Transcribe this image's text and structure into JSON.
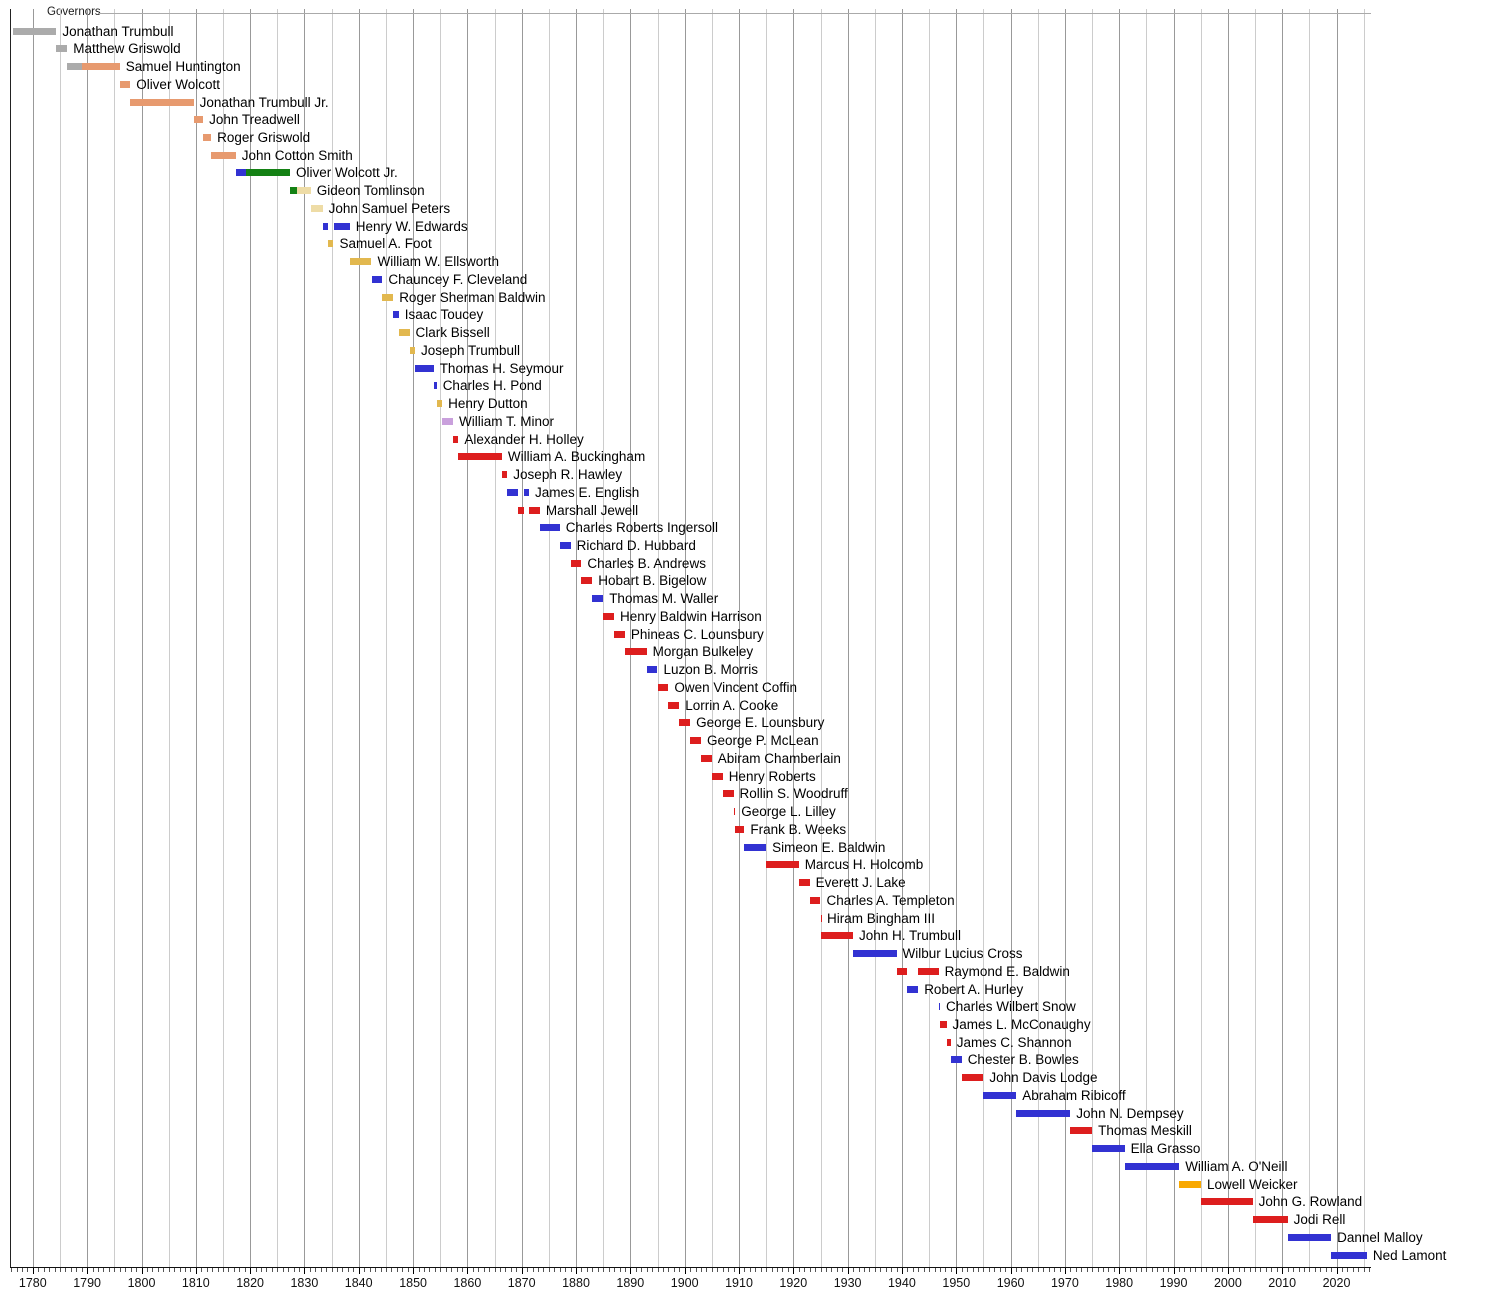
{
  "chart_data": {
    "type": "timeline",
    "title": "Governors",
    "x_axis": {
      "min_year": 1775.8,
      "max_year": 2026.3,
      "gridline_step_years": 5,
      "label_step_years": 10,
      "tick_labels": [
        "1780",
        "1790",
        "1800",
        "1810",
        "1820",
        "1830",
        "1840",
        "1850",
        "1860",
        "1870",
        "1880",
        "1890",
        "1900",
        "1910",
        "1920",
        "1930",
        "1940",
        "1950",
        "1960",
        "1970",
        "1980",
        "1990",
        "2000",
        "2010",
        "2020"
      ]
    },
    "colors": {
      "gray": "#ABABAB",
      "salmon": "#E79A6F",
      "blue": "#3232D2",
      "green": "#148114",
      "buff": "#EEDCA6",
      "gold": "#E2B84F",
      "purple": "#C9A0DC",
      "red": "#DD1E1E",
      "orange": "#F9A800"
    },
    "governors": [
      {
        "name": "Jonathan Trumbull",
        "segments": [
          {
            "from": 1776.4,
            "till": 1784.35,
            "color": "gray"
          }
        ]
      },
      {
        "name": "Matthew Griswold",
        "segments": [
          {
            "from": 1784.35,
            "till": 1786.35,
            "color": "gray"
          }
        ]
      },
      {
        "name": "Samuel Huntington",
        "segments": [
          {
            "from": 1786.35,
            "till": 1789.0,
            "color": "gray"
          },
          {
            "from": 1789.0,
            "till": 1796.02,
            "color": "salmon"
          }
        ]
      },
      {
        "name": "Oliver Wolcott",
        "segments": [
          {
            "from": 1796.02,
            "till": 1797.92,
            "color": "salmon"
          }
        ]
      },
      {
        "name": "Jonathan Trumbull Jr.",
        "segments": [
          {
            "from": 1797.92,
            "till": 1809.6,
            "color": "salmon"
          }
        ]
      },
      {
        "name": "John Treadwell",
        "segments": [
          {
            "from": 1809.6,
            "till": 1811.35,
            "color": "salmon"
          }
        ]
      },
      {
        "name": "Roger Griswold",
        "segments": [
          {
            "from": 1811.35,
            "till": 1812.82,
            "color": "salmon"
          }
        ]
      },
      {
        "name": "John Cotton Smith",
        "segments": [
          {
            "from": 1812.82,
            "till": 1817.35,
            "color": "salmon"
          }
        ]
      },
      {
        "name": "Oliver Wolcott Jr.",
        "segments": [
          {
            "from": 1817.35,
            "till": 1819.2,
            "color": "blue"
          },
          {
            "from": 1819.2,
            "till": 1827.35,
            "color": "green"
          }
        ]
      },
      {
        "name": "Gideon Tomlinson",
        "segments": [
          {
            "from": 1827.35,
            "till": 1828.6,
            "color": "green"
          },
          {
            "from": 1828.6,
            "till": 1831.17,
            "color": "buff"
          }
        ]
      },
      {
        "name": "John Samuel Peters",
        "segments": [
          {
            "from": 1831.17,
            "till": 1833.35,
            "color": "buff"
          }
        ]
      },
      {
        "name": "Henry W. Edwards",
        "segments": [
          {
            "from": 1833.35,
            "till": 1834.35,
            "color": "blue"
          },
          {
            "from": 1835.35,
            "till": 1838.35,
            "color": "blue"
          }
        ]
      },
      {
        "name": "Samuel A. Foot",
        "segments": [
          {
            "from": 1834.35,
            "till": 1835.35,
            "color": "gold"
          }
        ]
      },
      {
        "name": "William W. Ellsworth",
        "segments": [
          {
            "from": 1838.35,
            "till": 1842.35,
            "color": "gold"
          }
        ]
      },
      {
        "name": "Chauncey F. Cleveland",
        "segments": [
          {
            "from": 1842.35,
            "till": 1844.35,
            "color": "blue"
          }
        ]
      },
      {
        "name": "Roger Sherman Baldwin",
        "segments": [
          {
            "from": 1844.35,
            "till": 1846.35,
            "color": "gold"
          }
        ]
      },
      {
        "name": "Isaac Toucey",
        "segments": [
          {
            "from": 1846.35,
            "till": 1847.35,
            "color": "blue"
          }
        ]
      },
      {
        "name": "Clark Bissell",
        "segments": [
          {
            "from": 1847.35,
            "till": 1849.35,
            "color": "gold"
          }
        ]
      },
      {
        "name": "Joseph Trumbull",
        "segments": [
          {
            "from": 1849.35,
            "till": 1850.35,
            "color": "gold"
          }
        ]
      },
      {
        "name": "Thomas H. Seymour",
        "segments": [
          {
            "from": 1850.35,
            "till": 1853.8,
            "color": "blue"
          }
        ]
      },
      {
        "name": "Charles H. Pond",
        "segments": [
          {
            "from": 1853.8,
            "till": 1854.35,
            "color": "blue"
          }
        ]
      },
      {
        "name": "Henry Dutton",
        "segments": [
          {
            "from": 1854.35,
            "till": 1855.35,
            "color": "gold"
          }
        ]
      },
      {
        "name": "William T. Minor",
        "segments": [
          {
            "from": 1855.35,
            "till": 1857.35,
            "color": "purple"
          }
        ]
      },
      {
        "name": "Alexander H. Holley",
        "segments": [
          {
            "from": 1857.35,
            "till": 1858.35,
            "color": "red"
          }
        ]
      },
      {
        "name": "William A. Buckingham",
        "segments": [
          {
            "from": 1858.35,
            "till": 1866.35,
            "color": "red"
          }
        ]
      },
      {
        "name": "Joseph R. Hawley",
        "segments": [
          {
            "from": 1866.35,
            "till": 1867.35,
            "color": "red"
          }
        ]
      },
      {
        "name": "James E. English",
        "segments": [
          {
            "from": 1867.35,
            "till": 1869.35,
            "color": "blue"
          },
          {
            "from": 1870.35,
            "till": 1871.35,
            "color": "blue"
          }
        ]
      },
      {
        "name": "Marshall Jewell",
        "segments": [
          {
            "from": 1869.35,
            "till": 1870.35,
            "color": "red"
          },
          {
            "from": 1871.35,
            "till": 1873.35,
            "color": "red"
          }
        ]
      },
      {
        "name": "Charles Roberts Ingersoll",
        "segments": [
          {
            "from": 1873.35,
            "till": 1877.0,
            "color": "blue"
          }
        ]
      },
      {
        "name": "Richard D. Hubbard",
        "segments": [
          {
            "from": 1877.0,
            "till": 1879.0,
            "color": "blue"
          }
        ]
      },
      {
        "name": "Charles B. Andrews",
        "segments": [
          {
            "from": 1879.0,
            "till": 1881.0,
            "color": "red"
          }
        ]
      },
      {
        "name": "Hobart B. Bigelow",
        "segments": [
          {
            "from": 1881.0,
            "till": 1883.0,
            "color": "red"
          }
        ]
      },
      {
        "name": "Thomas M. Waller",
        "segments": [
          {
            "from": 1883.0,
            "till": 1885.0,
            "color": "blue"
          }
        ]
      },
      {
        "name": "Henry Baldwin Harrison",
        "segments": [
          {
            "from": 1885.0,
            "till": 1887.0,
            "color": "red"
          }
        ]
      },
      {
        "name": "Phineas C. Lounsbury",
        "segments": [
          {
            "from": 1887.0,
            "till": 1889.0,
            "color": "red"
          }
        ]
      },
      {
        "name": "Morgan Bulkeley",
        "segments": [
          {
            "from": 1889.0,
            "till": 1893.0,
            "color": "red"
          }
        ]
      },
      {
        "name": "Luzon B. Morris",
        "segments": [
          {
            "from": 1893.0,
            "till": 1895.0,
            "color": "blue"
          }
        ]
      },
      {
        "name": "Owen Vincent Coffin",
        "segments": [
          {
            "from": 1895.0,
            "till": 1897.0,
            "color": "red"
          }
        ]
      },
      {
        "name": "Lorrin A. Cooke",
        "segments": [
          {
            "from": 1897.0,
            "till": 1899.0,
            "color": "red"
          }
        ]
      },
      {
        "name": "George E. Lounsbury",
        "segments": [
          {
            "from": 1899.0,
            "till": 1901.0,
            "color": "red"
          }
        ]
      },
      {
        "name": "George P. McLean",
        "segments": [
          {
            "from": 1901.0,
            "till": 1903.0,
            "color": "red"
          }
        ]
      },
      {
        "name": "Abiram Chamberlain",
        "segments": [
          {
            "from": 1903.0,
            "till": 1905.0,
            "color": "red"
          }
        ]
      },
      {
        "name": "Henry Roberts",
        "segments": [
          {
            "from": 1905.0,
            "till": 1907.0,
            "color": "red"
          }
        ]
      },
      {
        "name": "Rollin S. Woodruff",
        "segments": [
          {
            "from": 1907.0,
            "till": 1909.0,
            "color": "red"
          }
        ]
      },
      {
        "name": "George L. Lilley",
        "segments": [
          {
            "from": 1909.0,
            "till": 1909.3,
            "color": "red"
          }
        ]
      },
      {
        "name": "Frank B. Weeks",
        "segments": [
          {
            "from": 1909.3,
            "till": 1911.0,
            "color": "red"
          }
        ]
      },
      {
        "name": "Simeon E. Baldwin",
        "segments": [
          {
            "from": 1911.0,
            "till": 1915.0,
            "color": "blue"
          }
        ]
      },
      {
        "name": "Marcus H. Holcomb",
        "segments": [
          {
            "from": 1915.0,
            "till": 1921.0,
            "color": "red"
          }
        ]
      },
      {
        "name": "Everett J. Lake",
        "segments": [
          {
            "from": 1921.0,
            "till": 1923.0,
            "color": "red"
          }
        ]
      },
      {
        "name": "Charles A. Templeton",
        "segments": [
          {
            "from": 1923.0,
            "till": 1925.0,
            "color": "red"
          }
        ]
      },
      {
        "name": "Hiram Bingham III",
        "segments": [
          {
            "from": 1925.0,
            "till": 1925.1,
            "color": "red"
          }
        ]
      },
      {
        "name": "John H. Trumbull",
        "segments": [
          {
            "from": 1925.1,
            "till": 1931.0,
            "color": "red"
          }
        ]
      },
      {
        "name": "Wilbur Lucius Cross",
        "segments": [
          {
            "from": 1931.0,
            "till": 1939.0,
            "color": "blue"
          }
        ]
      },
      {
        "name": "Raymond E. Baldwin",
        "segments": [
          {
            "from": 1939.0,
            "till": 1941.0,
            "color": "red"
          },
          {
            "from": 1943.0,
            "till": 1946.75,
            "color": "red"
          }
        ]
      },
      {
        "name": "Robert A. Hurley",
        "segments": [
          {
            "from": 1941.0,
            "till": 1943.0,
            "color": "blue"
          }
        ]
      },
      {
        "name": "Charles Wilbert Snow",
        "segments": [
          {
            "from": 1946.75,
            "till": 1947.0,
            "color": "blue"
          }
        ]
      },
      {
        "name": "James L. McConaughy",
        "segments": [
          {
            "from": 1947.0,
            "till": 1948.2,
            "color": "red"
          }
        ]
      },
      {
        "name": "James C. Shannon",
        "segments": [
          {
            "from": 1948.2,
            "till": 1949.0,
            "color": "red"
          }
        ]
      },
      {
        "name": "Chester B. Bowles",
        "segments": [
          {
            "from": 1949.0,
            "till": 1951.0,
            "color": "blue"
          }
        ]
      },
      {
        "name": "John Davis Lodge",
        "segments": [
          {
            "from": 1951.0,
            "till": 1955.0,
            "color": "red"
          }
        ]
      },
      {
        "name": "Abraham Ribicoff",
        "segments": [
          {
            "from": 1955.0,
            "till": 1961.05,
            "color": "blue"
          }
        ]
      },
      {
        "name": "John N. Dempsey",
        "segments": [
          {
            "from": 1961.05,
            "till": 1971.0,
            "color": "blue"
          }
        ]
      },
      {
        "name": "Thomas Meskill",
        "segments": [
          {
            "from": 1971.0,
            "till": 1975.0,
            "color": "red"
          }
        ]
      },
      {
        "name": "Ella Grasso",
        "segments": [
          {
            "from": 1975.0,
            "till": 1981.0,
            "color": "blue"
          }
        ]
      },
      {
        "name": "William A. O'Neill",
        "segments": [
          {
            "from": 1981.0,
            "till": 1991.05,
            "color": "blue"
          }
        ]
      },
      {
        "name": "Lowell Weicker",
        "segments": [
          {
            "from": 1991.05,
            "till": 1995.05,
            "color": "orange"
          }
        ]
      },
      {
        "name": "John G. Rowland",
        "segments": [
          {
            "from": 1995.05,
            "till": 2004.55,
            "color": "red"
          }
        ]
      },
      {
        "name": "Jodi Rell",
        "segments": [
          {
            "from": 2004.55,
            "till": 2011.0,
            "color": "red"
          }
        ]
      },
      {
        "name": "Dannel Malloy",
        "segments": [
          {
            "from": 2011.0,
            "till": 2019.0,
            "color": "blue"
          }
        ]
      },
      {
        "name": "Ned Lamont",
        "segments": [
          {
            "from": 2019.0,
            "till": 2025.6,
            "color": "blue"
          }
        ]
      }
    ]
  }
}
